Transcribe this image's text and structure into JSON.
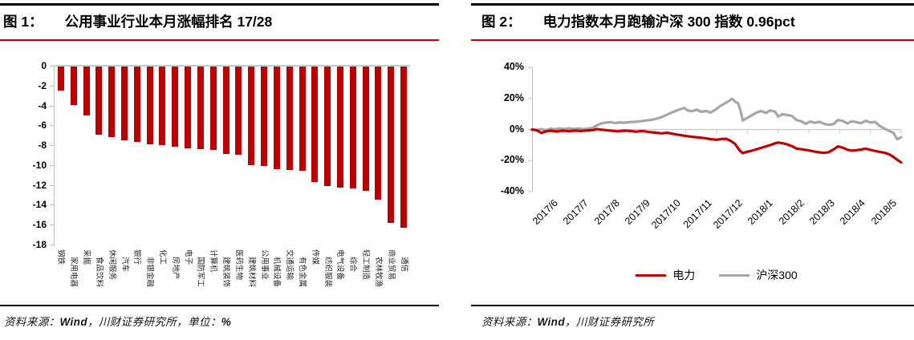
{
  "panels": {
    "left": {
      "label": "图 1：",
      "title": "公用事业行业本月涨幅排名 17/28",
      "source": {
        "prefix": "资料来源：",
        "vendor": "Wind",
        "middle": "，川财证券研究所，",
        "unit_label": "单位：",
        "unit_value": "%"
      }
    },
    "right": {
      "label": "图 2：",
      "title": "电力指数本月跑输沪深 300 指数 0.96pct",
      "source": {
        "prefix": "资料来源：",
        "vendor": "Wind",
        "middle": "，川财证券研究所"
      }
    }
  },
  "colors": {
    "bar_red": "#c00000",
    "line_red": "#c00000",
    "line_gray": "#a6a6a6",
    "axis_gray": "#bfbfbf",
    "grid_gray": "#c9c9c9",
    "rule_black": "#000000",
    "rule_red": "#c30000"
  },
  "chart_data": [
    {
      "type": "bar",
      "title": "公用事业行业本月涨幅排名 17/28",
      "unit": "%",
      "ylim": [
        -18,
        0
      ],
      "ytick_labels": [
        "0",
        "-2",
        "-4",
        "-6",
        "-8",
        "-10",
        "-12",
        "-14",
        "-16",
        "-18"
      ],
      "grid": false,
      "bar_color": "#c00000",
      "categories": [
        "钢铁",
        "家用电器",
        "采掘",
        "食品饮料",
        "休闲服务",
        "汽车",
        "银行",
        "非银金融",
        "化工",
        "房地产",
        "电子",
        "国防军工",
        "计算机",
        "建筑装饰",
        "医药生物",
        "建筑材料",
        "公用事业",
        "机械设备",
        "交通运输",
        "有色金属",
        "传媒",
        "纺织服装",
        "电气设备",
        "综合",
        "轻工制造",
        "农林牧渔",
        "商业贸易",
        "通信"
      ],
      "values": [
        -2.4,
        -3.9,
        -4.9,
        -6.9,
        -7.1,
        -7.4,
        -7.6,
        -7.8,
        -7.9,
        -8.1,
        -8.2,
        -8.3,
        -8.4,
        -8.8,
        -8.9,
        -9.9,
        -10.0,
        -10.3,
        -10.4,
        -10.5,
        -11.6,
        -12.0,
        -12.2,
        -12.3,
        -12.5,
        -13.4,
        -15.7,
        -16.2
      ]
    },
    {
      "type": "line",
      "title": "电力指数本月跑输沪深 300 指数 0.96pct",
      "ylim": [
        -40,
        40
      ],
      "ytick_labels": [
        "40%",
        "20%",
        "0%",
        "-20%",
        "-40%"
      ],
      "x_tick_labels": [
        "2017/6",
        "2017/7",
        "2017/8",
        "2017/9",
        "2017/10",
        "2017/11",
        "2017/12",
        "2018/1",
        "2018/2",
        "2018/3",
        "2018/4",
        "2018/5"
      ],
      "x_range_months": [
        0,
        12
      ],
      "legend_position": "bottom",
      "series": [
        {
          "name": "电力",
          "color": "#c00000",
          "points": [
            [
              0,
              0
            ],
            [
              0.15,
              -0.4
            ],
            [
              0.3,
              -2.2
            ],
            [
              0.45,
              -1.2
            ],
            [
              0.6,
              -0.8
            ],
            [
              0.8,
              -1.3
            ],
            [
              1.0,
              -0.7
            ],
            [
              1.2,
              -1.1
            ],
            [
              1.4,
              -0.7
            ],
            [
              1.6,
              -1.0
            ],
            [
              1.8,
              -0.6
            ],
            [
              2.0,
              -0.3
            ],
            [
              2.1,
              0.3
            ],
            [
              2.25,
              -0.1
            ],
            [
              2.4,
              -0.4
            ],
            [
              2.6,
              -0.9
            ],
            [
              2.8,
              -1.2
            ],
            [
              3.0,
              -0.7
            ],
            [
              3.2,
              -1.0
            ],
            [
              3.4,
              -1.4
            ],
            [
              3.6,
              -1.0
            ],
            [
              3.8,
              -1.6
            ],
            [
              4.0,
              -2.0
            ],
            [
              4.2,
              -2.5
            ],
            [
              4.4,
              -2.1
            ],
            [
              4.6,
              -2.9
            ],
            [
              4.8,
              -3.5
            ],
            [
              5.0,
              -4.2
            ],
            [
              5.2,
              -4.7
            ],
            [
              5.4,
              -5.1
            ],
            [
              5.6,
              -5.5
            ],
            [
              5.8,
              -6.2
            ],
            [
              6.0,
              -6.6
            ],
            [
              6.15,
              -6.1
            ],
            [
              6.3,
              -6.0
            ],
            [
              6.45,
              -7.2
            ],
            [
              6.6,
              -9.3
            ],
            [
              6.75,
              -13.5
            ],
            [
              6.85,
              -15.2
            ],
            [
              7.0,
              -14.3
            ],
            [
              7.15,
              -13.6
            ],
            [
              7.3,
              -12.7
            ],
            [
              7.45,
              -11.8
            ],
            [
              7.6,
              -10.9
            ],
            [
              7.75,
              -10.0
            ],
            [
              7.9,
              -8.9
            ],
            [
              8.0,
              -8.4
            ],
            [
              8.15,
              -8.9
            ],
            [
              8.3,
              -9.6
            ],
            [
              8.45,
              -10.7
            ],
            [
              8.6,
              -12.3
            ],
            [
              8.75,
              -12.7
            ],
            [
              8.9,
              -13.1
            ],
            [
              9.05,
              -13.6
            ],
            [
              9.2,
              -14.3
            ],
            [
              9.35,
              -14.7
            ],
            [
              9.5,
              -15.0
            ],
            [
              9.65,
              -14.6
            ],
            [
              9.8,
              -12.8
            ],
            [
              9.95,
              -10.9
            ],
            [
              10.1,
              -11.7
            ],
            [
              10.25,
              -13.0
            ],
            [
              10.4,
              -13.6
            ],
            [
              10.55,
              -13.3
            ],
            [
              10.7,
              -12.9
            ],
            [
              10.85,
              -12.3
            ],
            [
              11.0,
              -13.1
            ],
            [
              11.15,
              -13.8
            ],
            [
              11.3,
              -14.4
            ],
            [
              11.45,
              -14.9
            ],
            [
              11.6,
              -15.9
            ],
            [
              11.75,
              -17.7
            ],
            [
              11.9,
              -19.9
            ],
            [
              12.0,
              -21.2
            ]
          ]
        },
        {
          "name": "沪深300",
          "color": "#a6a6a6",
          "points": [
            [
              0,
              0
            ],
            [
              0.15,
              -0.6
            ],
            [
              0.3,
              0.3
            ],
            [
              0.45,
              -0.4
            ],
            [
              0.6,
              0.5
            ],
            [
              0.75,
              0.1
            ],
            [
              0.9,
              0.7
            ],
            [
              1.05,
              0.2
            ],
            [
              1.2,
              0.8
            ],
            [
              1.35,
              0.3
            ],
            [
              1.5,
              0.7
            ],
            [
              1.65,
              0.2
            ],
            [
              1.8,
              0.5
            ],
            [
              1.95,
              1.0
            ],
            [
              2.1,
              2.6
            ],
            [
              2.25,
              3.9
            ],
            [
              2.4,
              4.5
            ],
            [
              2.55,
              4.7
            ],
            [
              2.7,
              4.2
            ],
            [
              2.85,
              4.6
            ],
            [
              3.0,
              4.4
            ],
            [
              3.15,
              4.7
            ],
            [
              3.3,
              4.9
            ],
            [
              3.45,
              5.1
            ],
            [
              3.6,
              5.5
            ],
            [
              3.75,
              5.9
            ],
            [
              3.9,
              6.3
            ],
            [
              4.05,
              6.9
            ],
            [
              4.2,
              7.9
            ],
            [
              4.35,
              9.2
            ],
            [
              4.5,
              10.6
            ],
            [
              4.65,
              11.8
            ],
            [
              4.8,
              12.9
            ],
            [
              4.95,
              13.9
            ],
            [
              5.05,
              12.3
            ],
            [
              5.2,
              11.7
            ],
            [
              5.35,
              12.8
            ],
            [
              5.5,
              11.3
            ],
            [
              5.65,
              11.9
            ],
            [
              5.8,
              10.9
            ],
            [
              5.95,
              12.6
            ],
            [
              6.1,
              14.8
            ],
            [
              6.25,
              16.6
            ],
            [
              6.4,
              18.3
            ],
            [
              6.5,
              19.8
            ],
            [
              6.6,
              18.0
            ],
            [
              6.7,
              16.9
            ],
            [
              6.78,
              12.0
            ],
            [
              6.85,
              5.8
            ],
            [
              7.0,
              7.5
            ],
            [
              7.15,
              9.2
            ],
            [
              7.3,
              10.9
            ],
            [
              7.45,
              11.9
            ],
            [
              7.6,
              10.7
            ],
            [
              7.75,
              12.3
            ],
            [
              7.9,
              11.5
            ],
            [
              8.0,
              8.3
            ],
            [
              8.15,
              9.9
            ],
            [
              8.3,
              9.3
            ],
            [
              8.45,
              8.7
            ],
            [
              8.6,
              6.1
            ],
            [
              8.75,
              5.3
            ],
            [
              8.9,
              3.7
            ],
            [
              9.05,
              5.1
            ],
            [
              9.2,
              4.3
            ],
            [
              9.35,
              5.0
            ],
            [
              9.5,
              3.6
            ],
            [
              9.65,
              3.0
            ],
            [
              9.8,
              3.5
            ],
            [
              9.95,
              6.1
            ],
            [
              10.1,
              5.5
            ],
            [
              10.25,
              3.9
            ],
            [
              10.4,
              5.3
            ],
            [
              10.55,
              4.7
            ],
            [
              10.7,
              4.1
            ],
            [
              10.85,
              5.7
            ],
            [
              11.0,
              4.5
            ],
            [
              11.15,
              4.9
            ],
            [
              11.3,
              2.3
            ],
            [
              11.45,
              0.7
            ],
            [
              11.6,
              -0.9
            ],
            [
              11.75,
              -2.1
            ],
            [
              11.87,
              -6.3
            ],
            [
              12.0,
              -5.0
            ]
          ]
        }
      ]
    }
  ]
}
